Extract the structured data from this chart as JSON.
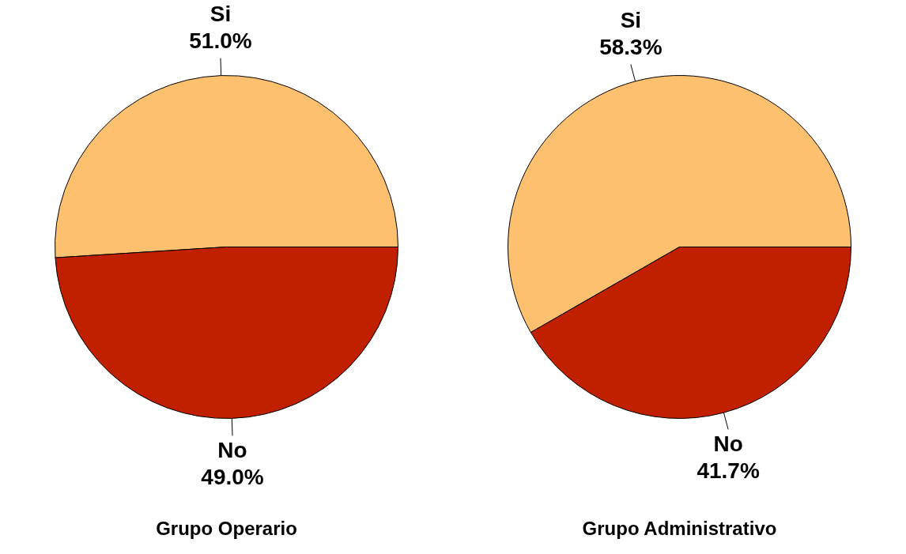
{
  "chart_data": [
    {
      "type": "pie",
      "title": "Grupo Operario",
      "categories": [
        "Si",
        "No"
      ],
      "values": [
        51.0,
        49.0
      ],
      "colors": [
        "#fdc06e",
        "#c02000"
      ],
      "value_labels": [
        "51.0%",
        "49.0%"
      ],
      "legend": false
    },
    {
      "type": "pie",
      "title": "Grupo Administrativo",
      "categories": [
        "Si",
        "No"
      ],
      "values": [
        58.3,
        41.7
      ],
      "colors": [
        "#fdc06e",
        "#c02000"
      ],
      "value_labels": [
        "58.3%",
        "41.7%"
      ],
      "legend": false
    }
  ]
}
